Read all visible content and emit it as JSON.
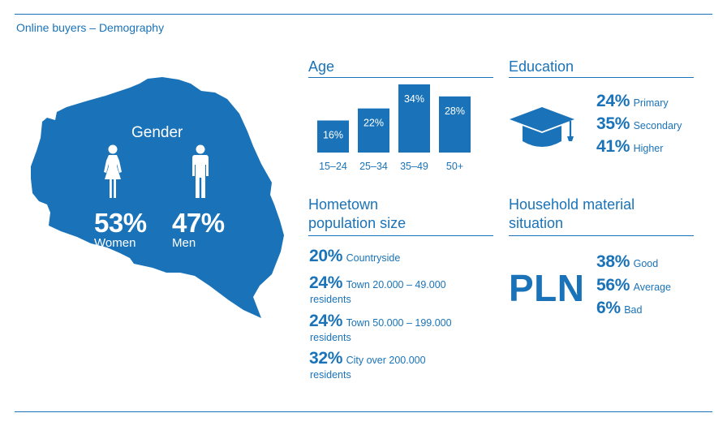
{
  "page_title": "Online buyers – Demography",
  "colors": {
    "accent": "#1a73b8",
    "background": "#ffffff",
    "map_fill": "#1a73b8"
  },
  "gender": {
    "title": "Gender",
    "women": {
      "percent": "53%",
      "label": "Women",
      "icon": "female-figure-icon"
    },
    "men": {
      "percent": "47%",
      "label": "Men",
      "icon": "male-figure-icon"
    }
  },
  "age": {
    "title": "Age"
  },
  "education": {
    "title": "Education",
    "icon": "graduation-cap-icon",
    "items": [
      {
        "percent": "24%",
        "label": "Primary"
      },
      {
        "percent": "35%",
        "label": "Secondary"
      },
      {
        "percent": "41%",
        "label": "Higher"
      }
    ]
  },
  "hometown": {
    "title_line1": "Hometown",
    "title_line2": "population size",
    "items": [
      {
        "percent": "20%",
        "label": "Countryside",
        "label_line2": ""
      },
      {
        "percent": "24%",
        "label": "Town 20.000 – 49.000",
        "label_line2": "residents"
      },
      {
        "percent": "24%",
        "label": "Town 50.000 – 199.000",
        "label_line2": "residents"
      },
      {
        "percent": "32%",
        "label": "City over 200.000",
        "label_line2": "residents"
      }
    ]
  },
  "household": {
    "title_line1": "Household material",
    "title_line2": "situation",
    "currency_label": "PLN",
    "items": [
      {
        "percent": "38%",
        "label": "Good"
      },
      {
        "percent": "56%",
        "label": "Average"
      },
      {
        "percent": "6%",
        "label": "Bad"
      }
    ]
  },
  "chart_data": [
    {
      "type": "bar",
      "title": "Age",
      "categories": [
        "15–24",
        "25–34",
        "35–49",
        "50+"
      ],
      "values": [
        16,
        22,
        34,
        28
      ],
      "data_labels": [
        "16%",
        "22%",
        "34%",
        "28%"
      ],
      "ylim": [
        0,
        34
      ],
      "grid": false,
      "legend": "none"
    },
    {
      "type": "table",
      "title": "Gender",
      "categories": [
        "Women",
        "Men"
      ],
      "values": [
        53,
        47
      ]
    },
    {
      "type": "table",
      "title": "Education",
      "categories": [
        "Primary",
        "Secondary",
        "Higher"
      ],
      "values": [
        24,
        35,
        41
      ]
    },
    {
      "type": "table",
      "title": "Hometown population size",
      "categories": [
        "Countryside",
        "Town 20.000 – 49.000 residents",
        "Town 50.000 – 199.000 residents",
        "City over 200.000 residents"
      ],
      "values": [
        20,
        24,
        24,
        32
      ]
    },
    {
      "type": "table",
      "title": "Household material situation",
      "categories": [
        "Good",
        "Average",
        "Bad"
      ],
      "values": [
        38,
        56,
        6
      ]
    }
  ]
}
